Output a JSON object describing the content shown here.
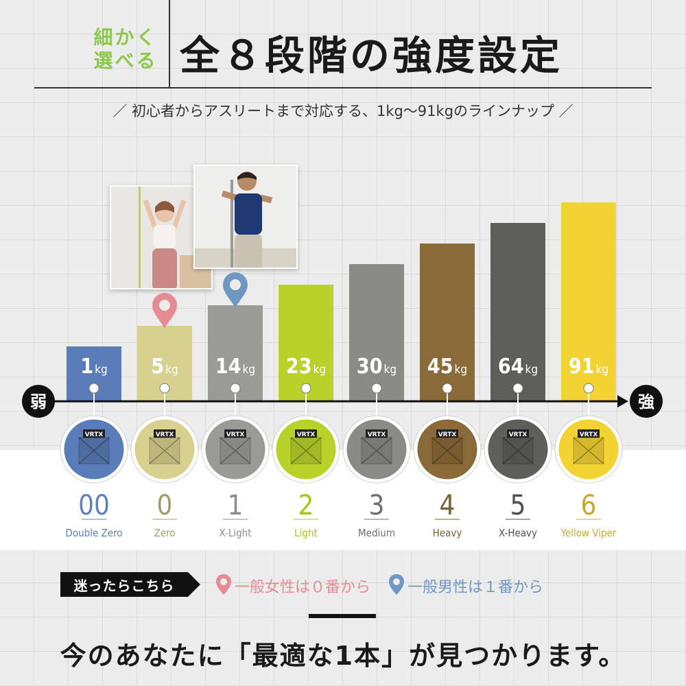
{
  "header": {
    "sub_line1": "細かく",
    "sub_line2": "選べる",
    "title": "全８段階の強度設定",
    "tagline": "／ 初心者からアスリートまで対応する、1kg〜91kgのラインナップ ／"
  },
  "axis": {
    "weak_label": "弱",
    "strong_label": "強"
  },
  "colors": {
    "accent_green": "#8cc84b",
    "female_pin": "#e48b94",
    "male_pin": "#6f97c2"
  },
  "chart_data": {
    "type": "bar",
    "unit": "kg",
    "categories": [
      "Double Zero",
      "Zero",
      "X-Light",
      "Light",
      "Medium",
      "Heavy",
      "X-Heavy",
      "Yellow Viper"
    ],
    "levels": [
      "00",
      "0",
      "1",
      "2",
      "3",
      "4",
      "5",
      "6"
    ],
    "values": [
      1,
      5,
      14,
      23,
      30,
      45,
      64,
      91
    ],
    "value_labels": [
      "1",
      "5",
      "14",
      "23",
      "30",
      "45",
      "64",
      "91"
    ],
    "bar_colors": [
      "#5a7cb8",
      "#d8d08e",
      "#9a9a96",
      "#b9d22a",
      "#8a8b84",
      "#8a6a38",
      "#5e5e5a",
      "#f3d234"
    ],
    "text_colors": [
      "#5e80bb",
      "#a39a6b",
      "#8c8c8c",
      "#a5c41c",
      "#6e6e6e",
      "#7a6133",
      "#4f4f4f",
      "#c9a92c"
    ],
    "band_labels": [
      "VRTX",
      "VRTX",
      "VRTX",
      "VRTX",
      "VRTX",
      "VRTX",
      "VRTX",
      "VRTX"
    ]
  },
  "guide": {
    "label": "迷ったらこちら",
    "female": "一般女性は０番から",
    "male": "一般男性は１番から",
    "female_pin_index": 1,
    "male_pin_index": 2
  },
  "bottom": {
    "message": "今のあなたに「最適な1本」が見つかります。"
  }
}
